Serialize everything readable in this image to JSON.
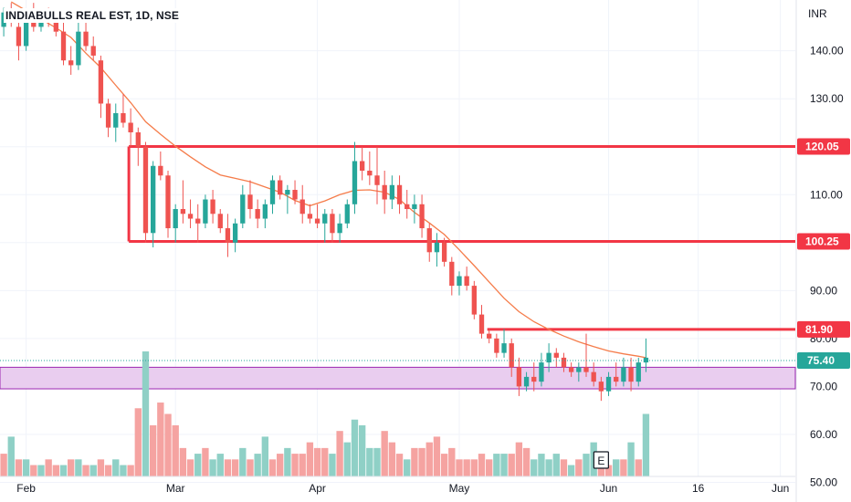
{
  "chart_title": "INDIABULLS REAL EST, 1D, NSE",
  "currency_label": "INR",
  "event_marker_label": "E",
  "colors": {
    "up": "#26a69a",
    "down": "#ef5350",
    "volume_up": "#8fd0c6",
    "volume_down": "#f5a3a1",
    "level_line": "#f23645",
    "moving_average": "#f57c4a",
    "zone_fill": "#e9cdef",
    "zone_border": "#9c27b0",
    "last_price": "#26a69a",
    "grid": "#f0f3fa"
  },
  "chart_data": {
    "type": "candlestick",
    "y_axis": {
      "position": "right",
      "ticks": [
        140,
        130,
        120,
        110,
        100,
        90,
        80,
        70,
        60,
        50
      ],
      "tick_labels": [
        "140.00",
        "130.00",
        "120.00",
        "110.00",
        "100.00",
        "90.00",
        "80.00",
        "70.00",
        "60.00",
        "50.00"
      ],
      "ylim": [
        45.9,
        150.6
      ]
    },
    "x_axis": {
      "tick_labels": [
        "Feb",
        "Mar",
        "Apr",
        "May",
        "Jun",
        "16",
        "Jun"
      ],
      "tick_index": [
        3,
        23,
        42,
        61,
        81,
        93,
        104
      ],
      "xlim": [
        -0.5,
        106
      ]
    },
    "grid": true,
    "horizontal_levels": [
      {
        "value": 120.05,
        "label": "120.05",
        "from_index": 17
      },
      {
        "value": 100.25,
        "label": "100.25",
        "from_index": 17
      },
      {
        "value": 81.9,
        "label": "81.90",
        "from_index": 65
      }
    ],
    "zone": {
      "low": 69.5,
      "high": 74.0
    },
    "last_price": {
      "value": 75.4,
      "label": "75.40"
    },
    "event_marker_index": 80,
    "candles": [
      [
        145,
        149,
        143,
        148
      ],
      [
        148,
        150,
        145,
        146
      ],
      [
        145,
        147,
        138,
        141
      ],
      [
        141,
        148,
        140,
        147
      ],
      [
        146,
        150,
        144,
        145
      ],
      [
        145,
        148,
        144,
        147
      ],
      [
        147,
        149,
        145,
        146
      ],
      [
        146,
        147,
        143,
        144
      ],
      [
        144,
        146,
        137,
        138
      ],
      [
        138,
        141,
        135,
        137
      ],
      [
        137,
        146,
        136,
        144
      ],
      [
        144,
        147,
        140,
        141
      ],
      [
        141,
        143,
        138,
        139
      ],
      [
        138,
        139,
        126,
        129
      ],
      [
        129,
        130,
        122,
        124
      ],
      [
        124,
        129,
        121,
        127
      ],
      [
        127,
        131,
        124,
        125
      ],
      [
        125,
        128,
        120,
        123
      ],
      [
        123,
        124,
        116,
        120
      ],
      [
        120,
        121,
        100,
        102
      ],
      [
        102,
        117,
        99,
        116
      ],
      [
        116,
        119,
        113,
        114
      ],
      [
        114,
        115,
        101,
        103
      ],
      [
        103,
        108,
        100,
        107
      ],
      [
        107,
        113,
        104,
        106
      ],
      [
        106,
        109,
        103,
        105
      ],
      [
        105,
        108,
        100,
        104
      ],
      [
        104,
        110,
        103,
        109
      ],
      [
        109,
        111,
        104,
        106
      ],
      [
        106,
        107,
        102,
        103
      ],
      [
        103,
        106,
        97,
        100
      ],
      [
        100,
        105,
        98,
        104
      ],
      [
        104,
        112,
        103,
        110
      ],
      [
        110,
        113,
        105,
        107
      ],
      [
        107,
        109,
        103,
        105
      ],
      [
        105,
        109,
        103,
        108
      ],
      [
        108,
        114,
        106,
        113
      ],
      [
        113,
        114,
        109,
        110
      ],
      [
        110,
        112,
        106,
        111
      ],
      [
        111,
        113,
        108,
        109
      ],
      [
        109,
        112,
        104,
        106
      ],
      [
        106,
        108,
        104,
        105
      ],
      [
        105,
        108,
        103,
        104
      ],
      [
        104,
        107,
        100,
        106
      ],
      [
        106,
        107,
        100,
        102
      ],
      [
        102,
        106,
        100,
        104
      ],
      [
        104,
        109,
        103,
        108
      ],
      [
        108,
        121,
        106,
        117
      ],
      [
        117,
        120,
        113,
        115
      ],
      [
        115,
        119,
        112,
        114
      ],
      [
        114,
        120,
        108,
        112
      ],
      [
        112,
        115,
        106,
        109
      ],
      [
        109,
        114,
        107,
        112
      ],
      [
        112,
        114,
        106,
        108
      ],
      [
        108,
        111,
        105,
        107
      ],
      [
        107,
        110,
        104,
        108
      ],
      [
        108,
        110,
        101,
        103
      ],
      [
        103,
        104,
        96,
        98
      ],
      [
        98,
        102,
        95,
        100
      ],
      [
        100,
        101,
        95,
        96
      ],
      [
        96,
        97,
        89,
        91
      ],
      [
        91,
        94,
        89,
        93
      ],
      [
        93,
        95,
        90,
        91
      ],
      [
        91,
        92,
        84,
        85
      ],
      [
        85,
        87,
        80,
        81
      ],
      [
        81,
        82,
        79,
        80
      ],
      [
        80,
        81,
        76,
        77
      ],
      [
        77,
        82,
        76,
        79
      ],
      [
        79,
        80,
        72,
        74
      ],
      [
        74,
        76,
        68,
        70
      ],
      [
        70,
        73,
        69,
        72
      ],
      [
        72,
        75,
        69,
        71
      ],
      [
        71,
        77,
        70,
        75
      ],
      [
        75,
        79,
        73,
        77
      ],
      [
        77,
        78,
        74,
        76
      ],
      [
        76,
        77,
        73,
        74
      ],
      [
        74,
        75,
        72,
        73
      ],
      [
        73,
        75,
        71,
        74
      ],
      [
        74,
        81,
        72,
        73
      ],
      [
        73,
        75,
        70,
        71
      ],
      [
        71,
        72,
        67,
        69
      ],
      [
        69,
        73,
        68,
        72
      ],
      [
        72,
        75,
        70,
        71
      ],
      [
        71,
        76,
        70,
        74
      ],
      [
        74,
        76,
        69,
        71
      ],
      [
        71,
        76,
        70,
        75
      ],
      [
        75,
        80,
        73,
        76
      ]
    ],
    "moving_average": [
      [
        1,
        150.2
      ],
      [
        3,
        148.4
      ],
      [
        5,
        146.6
      ],
      [
        7,
        144.8
      ],
      [
        9,
        142.8
      ],
      [
        11,
        139.5
      ],
      [
        13,
        136.5
      ],
      [
        15,
        132.8
      ],
      [
        17,
        129.2
      ],
      [
        19,
        125.2
      ],
      [
        21,
        122.6
      ],
      [
        23,
        120.1
      ],
      [
        25,
        117.9
      ],
      [
        27,
        115.8
      ],
      [
        29,
        114.1
      ],
      [
        31,
        113.4
      ],
      [
        33,
        112.7
      ],
      [
        35,
        111.6
      ],
      [
        37,
        110.5
      ],
      [
        39,
        108.8
      ],
      [
        41,
        107.7
      ],
      [
        43,
        108.7
      ],
      [
        45,
        110.0
      ],
      [
        47,
        110.9
      ],
      [
        49,
        111.0
      ],
      [
        51,
        110.5
      ],
      [
        53,
        109.0
      ],
      [
        55,
        106.3
      ],
      [
        57,
        104.1
      ],
      [
        59,
        101.7
      ],
      [
        61,
        98.5
      ],
      [
        63,
        95.2
      ],
      [
        65,
        91.8
      ],
      [
        67,
        88.4
      ],
      [
        69,
        85.6
      ],
      [
        71,
        83.5
      ],
      [
        73,
        81.9
      ],
      [
        75,
        80.5
      ],
      [
        77,
        79.3
      ],
      [
        79,
        78.3
      ],
      [
        81,
        77.4
      ],
      [
        83,
        76.8
      ],
      [
        85,
        76.3
      ],
      [
        86,
        76.0
      ]
    ],
    "volumes": [
      [
        4,
        0
      ],
      [
        7,
        1
      ],
      [
        3,
        0
      ],
      [
        3,
        1
      ],
      [
        2,
        0
      ],
      [
        2,
        1
      ],
      [
        3,
        0
      ],
      [
        2,
        0
      ],
      [
        2,
        1
      ],
      [
        3,
        0
      ],
      [
        3,
        1
      ],
      [
        2,
        0
      ],
      [
        2,
        1
      ],
      [
        3,
        0
      ],
      [
        2,
        0
      ],
      [
        3,
        1
      ],
      [
        2,
        1
      ],
      [
        2,
        0
      ],
      [
        12,
        0
      ],
      [
        22,
        1
      ],
      [
        9,
        0
      ],
      [
        13,
        0
      ],
      [
        11,
        0
      ],
      [
        9,
        0
      ],
      [
        5,
        0
      ],
      [
        3,
        0
      ],
      [
        4,
        1
      ],
      [
        5,
        0
      ],
      [
        3,
        1
      ],
      [
        4,
        1
      ],
      [
        3,
        0
      ],
      [
        3,
        0
      ],
      [
        5,
        1
      ],
      [
        3,
        0
      ],
      [
        4,
        1
      ],
      [
        7,
        1
      ],
      [
        3,
        0
      ],
      [
        4,
        0
      ],
      [
        5,
        1
      ],
      [
        4,
        0
      ],
      [
        4,
        0
      ],
      [
        6,
        0
      ],
      [
        5,
        0
      ],
      [
        5,
        0
      ],
      [
        4,
        1
      ],
      [
        8,
        0
      ],
      [
        6,
        1
      ],
      [
        10,
        1
      ],
      [
        9,
        1
      ],
      [
        5,
        1
      ],
      [
        5,
        1
      ],
      [
        8,
        0
      ],
      [
        6,
        0
      ],
      [
        4,
        0
      ],
      [
        3,
        1
      ],
      [
        5,
        0
      ],
      [
        5,
        0
      ],
      [
        6,
        0
      ],
      [
        7,
        0
      ],
      [
        4,
        0
      ],
      [
        5,
        0
      ],
      [
        3,
        0
      ],
      [
        3,
        0
      ],
      [
        3,
        0
      ],
      [
        4,
        0
      ],
      [
        3,
        0
      ],
      [
        4,
        1
      ],
      [
        4,
        1
      ],
      [
        4,
        0
      ],
      [
        6,
        0
      ],
      [
        5,
        0
      ],
      [
        3,
        1
      ],
      [
        4,
        1
      ],
      [
        3,
        1
      ],
      [
        4,
        1
      ],
      [
        3,
        0
      ],
      [
        2,
        1
      ],
      [
        3,
        0
      ],
      [
        4,
        1
      ],
      [
        6,
        1
      ],
      [
        3,
        0
      ],
      [
        2,
        0
      ],
      [
        3,
        1
      ],
      [
        3,
        0
      ],
      [
        6,
        1
      ],
      [
        3,
        0
      ],
      [
        11,
        1
      ]
    ]
  }
}
